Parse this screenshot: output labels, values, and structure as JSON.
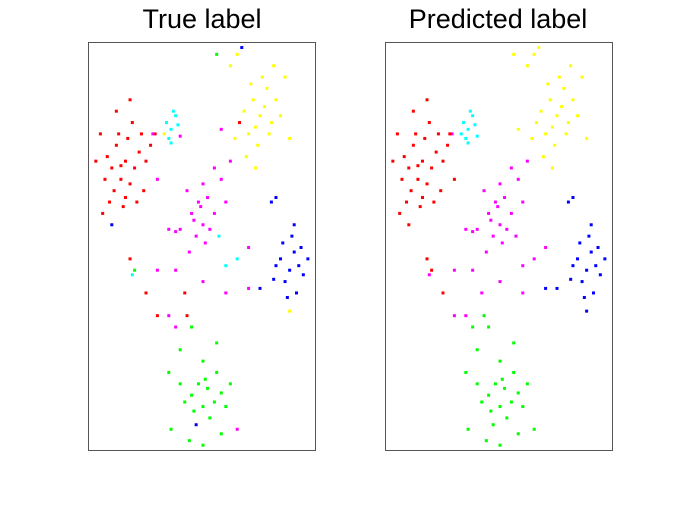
{
  "chart_data": [
    {
      "type": "scatter",
      "title": "True label",
      "label_field": "true_class",
      "xlim": [
        0,
        100
      ],
      "ylim": [
        0,
        180
      ],
      "grid": false,
      "xlabel": "",
      "ylabel": ""
    },
    {
      "type": "scatter",
      "title": "Predicted label",
      "label_field": "pred_class",
      "xlim": [
        0,
        100
      ],
      "ylim": [
        0,
        180
      ],
      "grid": false,
      "xlabel": "",
      "ylabel": ""
    }
  ],
  "class_colors": [
    "#ff0000",
    "#00ffff",
    "#ff00ff",
    "#ffff00",
    "#0000ff",
    "#00ff00"
  ],
  "points_columns": [
    "x",
    "y",
    "true_class",
    "pred_class"
  ],
  "points": [
    [
      8,
      130,
      0,
      0
    ],
    [
      10,
      125,
      0,
      0
    ],
    [
      12,
      135,
      0,
      0
    ],
    [
      14,
      120,
      0,
      0
    ],
    [
      16,
      128,
      0,
      0
    ],
    [
      18,
      118,
      0,
      0
    ],
    [
      11,
      115,
      0,
      0
    ],
    [
      9,
      110,
      0,
      0
    ],
    [
      20,
      125,
      0,
      0
    ],
    [
      22,
      132,
      0,
      0
    ],
    [
      13,
      140,
      0,
      0
    ],
    [
      17,
      138,
      0,
      0
    ],
    [
      25,
      128,
      0,
      0
    ],
    [
      24,
      115,
      0,
      0
    ],
    [
      7,
      120,
      0,
      0
    ],
    [
      15,
      108,
      0,
      0
    ],
    [
      6,
      105,
      0,
      0
    ],
    [
      19,
      145,
      0,
      0
    ],
    [
      27,
      135,
      0,
      0
    ],
    [
      29,
      140,
      0,
      2
    ],
    [
      12,
      150,
      0,
      0
    ],
    [
      18,
      155,
      0,
      0
    ],
    [
      30,
      120,
      2,
      0
    ],
    [
      10,
      100,
      4,
      0
    ],
    [
      21,
      110,
      0,
      0
    ],
    [
      14,
      126,
      0,
      0
    ],
    [
      16,
      112,
      0,
      0
    ],
    [
      23,
      140,
      0,
      0
    ],
    [
      18,
      85,
      0,
      0
    ],
    [
      20,
      80,
      5,
      0
    ],
    [
      25,
      70,
      0,
      0
    ],
    [
      30,
      60,
      0,
      2
    ],
    [
      5,
      140,
      0,
      0
    ],
    [
      3,
      128,
      0,
      0
    ],
    [
      34,
      145,
      1,
      1
    ],
    [
      36,
      142,
      1,
      1
    ],
    [
      38,
      148,
      1,
      1
    ],
    [
      35,
      138,
      1,
      1
    ],
    [
      37,
      150,
      1,
      1
    ],
    [
      33,
      140,
      3,
      1
    ],
    [
      39,
      144,
      1,
      1
    ],
    [
      36,
      136,
      1,
      1
    ],
    [
      40,
      139,
      2,
      1
    ],
    [
      19,
      78,
      1,
      2
    ],
    [
      60,
      82,
      1,
      2
    ],
    [
      45,
      105,
      2,
      2
    ],
    [
      48,
      110,
      2,
      2
    ],
    [
      50,
      100,
      2,
      2
    ],
    [
      52,
      112,
      2,
      2
    ],
    [
      47,
      95,
      2,
      2
    ],
    [
      55,
      105,
      2,
      2
    ],
    [
      43,
      115,
      2,
      2
    ],
    [
      50,
      118,
      2,
      2
    ],
    [
      53,
      98,
      2,
      2
    ],
    [
      46,
      102,
      2,
      2
    ],
    [
      49,
      108,
      2,
      2
    ],
    [
      51,
      92,
      2,
      2
    ],
    [
      58,
      120,
      2,
      2
    ],
    [
      40,
      98,
      2,
      2
    ],
    [
      35,
      98,
      2,
      2
    ],
    [
      38,
      97,
      2,
      2
    ],
    [
      60,
      110,
      2,
      2
    ],
    [
      57,
      95,
      1,
      2
    ],
    [
      44,
      88,
      2,
      2
    ],
    [
      30,
      80,
      2,
      2
    ],
    [
      55,
      125,
      2,
      2
    ],
    [
      62,
      128,
      2,
      2
    ],
    [
      38,
      80,
      2,
      2
    ],
    [
      42,
      70,
      0,
      2
    ],
    [
      50,
      75,
      2,
      2
    ],
    [
      60,
      70,
      2,
      2
    ],
    [
      35,
      60,
      2,
      2
    ],
    [
      65,
      85,
      1,
      2
    ],
    [
      70,
      90,
      2,
      2
    ],
    [
      28,
      140,
      2,
      0
    ],
    [
      68,
      150,
      3,
      3
    ],
    [
      72,
      155,
      3,
      3
    ],
    [
      75,
      148,
      3,
      3
    ],
    [
      78,
      160,
      3,
      3
    ],
    [
      80,
      145,
      3,
      3
    ],
    [
      70,
      140,
      3,
      3
    ],
    [
      74,
      135,
      3,
      3
    ],
    [
      82,
      155,
      3,
      3
    ],
    [
      76,
      165,
      3,
      3
    ],
    [
      66,
      145,
      0,
      3
    ],
    [
      64,
      138,
      3,
      3
    ],
    [
      71,
      162,
      3,
      3
    ],
    [
      79,
      140,
      3,
      3
    ],
    [
      84,
      148,
      3,
      3
    ],
    [
      77,
      152,
      3,
      3
    ],
    [
      73,
      143,
      3,
      3
    ],
    [
      69,
      130,
      3,
      3
    ],
    [
      86,
      165,
      3,
      3
    ],
    [
      62,
      170,
      3,
      3
    ],
    [
      67,
      178,
      4,
      3
    ],
    [
      65,
      175,
      3,
      3
    ],
    [
      81,
      170,
      3,
      3
    ],
    [
      58,
      142,
      2,
      3
    ],
    [
      88,
      138,
      3,
      3
    ],
    [
      56,
      175,
      5,
      3
    ],
    [
      73,
      125,
      3,
      3
    ],
    [
      84,
      85,
      4,
      4
    ],
    [
      88,
      80,
      4,
      4
    ],
    [
      90,
      88,
      4,
      4
    ],
    [
      86,
      75,
      4,
      4
    ],
    [
      92,
      82,
      4,
      4
    ],
    [
      89,
      95,
      4,
      4
    ],
    [
      94,
      78,
      4,
      4
    ],
    [
      82,
      82,
      4,
      4
    ],
    [
      87,
      68,
      4,
      4
    ],
    [
      91,
      70,
      4,
      4
    ],
    [
      85,
      92,
      4,
      4
    ],
    [
      93,
      90,
      4,
      4
    ],
    [
      96,
      85,
      4,
      4
    ],
    [
      88,
      62,
      3,
      4
    ],
    [
      81,
      76,
      4,
      4
    ],
    [
      90,
      100,
      4,
      4
    ],
    [
      80,
      110,
      4,
      4
    ],
    [
      82,
      112,
      4,
      4
    ],
    [
      75,
      72,
      4,
      4
    ],
    [
      70,
      72,
      2,
      4
    ],
    [
      45,
      25,
      5,
      5
    ],
    [
      50,
      20,
      5,
      5
    ],
    [
      52,
      28,
      5,
      5
    ],
    [
      55,
      22,
      5,
      5
    ],
    [
      48,
      30,
      5,
      5
    ],
    [
      58,
      26,
      5,
      5
    ],
    [
      46,
      18,
      5,
      5
    ],
    [
      53,
      15,
      5,
      5
    ],
    [
      60,
      20,
      5,
      5
    ],
    [
      42,
      22,
      5,
      5
    ],
    [
      56,
      35,
      5,
      5
    ],
    [
      50,
      40,
      5,
      5
    ],
    [
      62,
      30,
      5,
      5
    ],
    [
      40,
      45,
      5,
      5
    ],
    [
      38,
      55,
      2,
      5
    ],
    [
      45,
      55,
      5,
      5
    ],
    [
      43,
      60,
      0,
      5
    ],
    [
      35,
      35,
      5,
      5
    ],
    [
      36,
      10,
      5,
      5
    ],
    [
      44,
      5,
      5,
      5
    ],
    [
      50,
      3,
      5,
      5
    ],
    [
      58,
      8,
      5,
      5
    ],
    [
      65,
      10,
      2,
      5
    ],
    [
      51,
      32,
      5,
      5
    ],
    [
      47,
      12,
      4,
      5
    ],
    [
      56,
      48,
      5,
      5
    ],
    [
      40,
      30,
      5,
      5
    ]
  ]
}
